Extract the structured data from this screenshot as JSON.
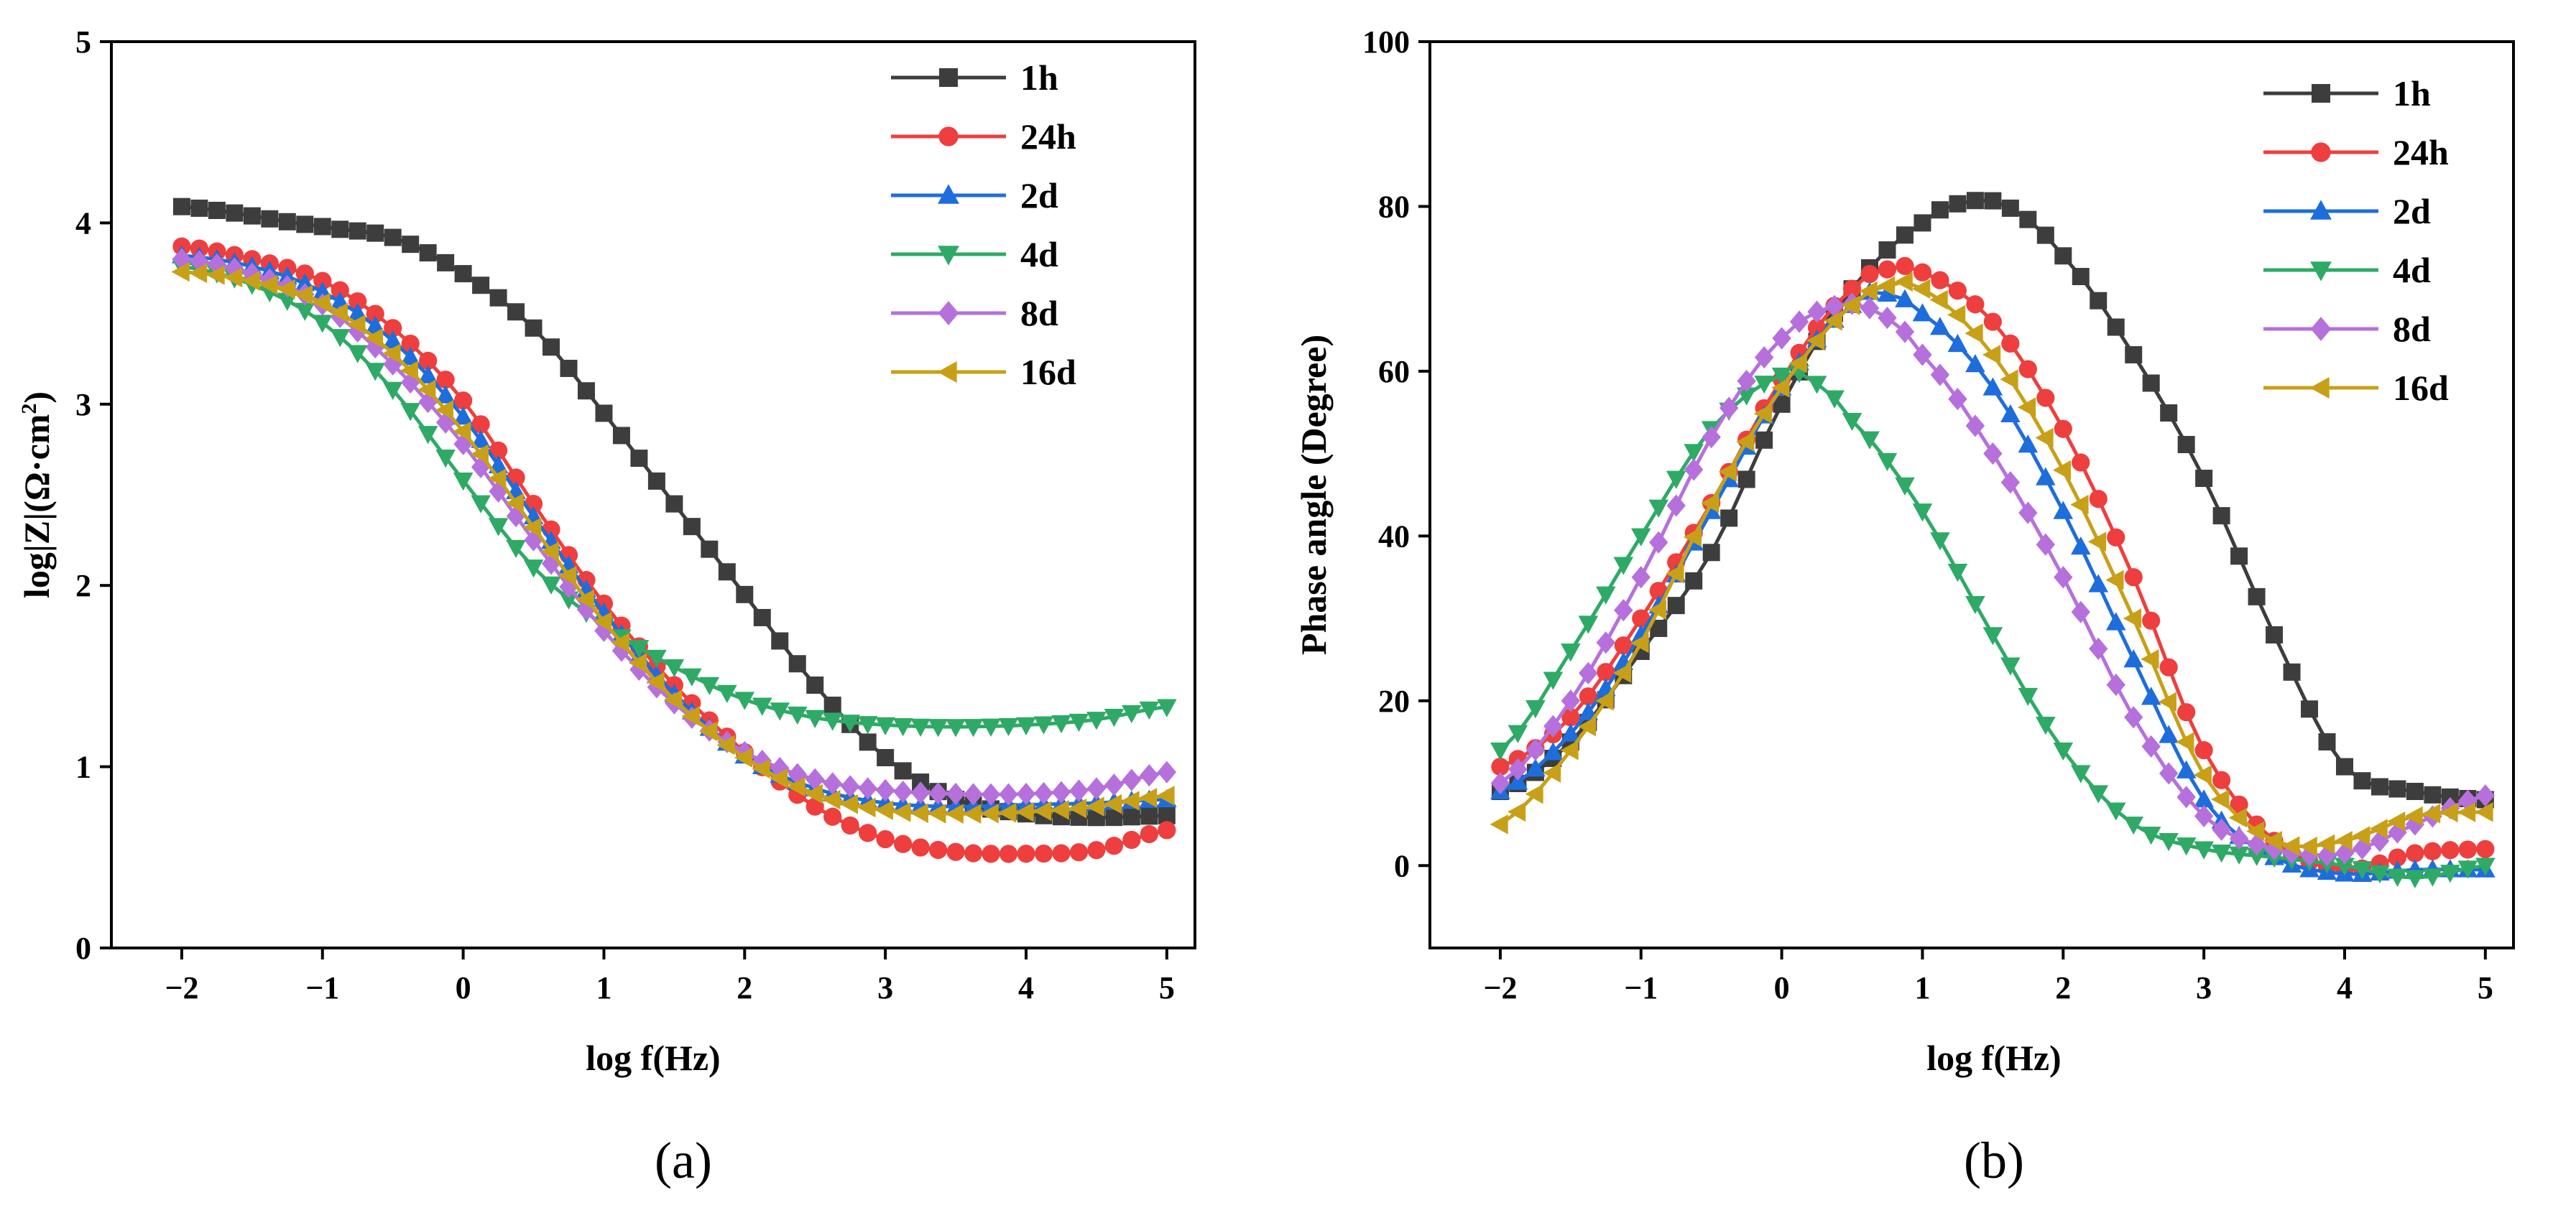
{
  "chart_data": [
    {
      "type": "line",
      "panel_label": "(a)",
      "xlabel": "log f(Hz)",
      "ylabel_prefix": "log|Z|(Ω·cm",
      "ylabel_sup": "2",
      "ylabel_suffix": ")",
      "xlim": [
        -2.5,
        5.2
      ],
      "ylim": [
        0,
        5
      ],
      "xticks": [
        -2,
        -1,
        0,
        1,
        2,
        3,
        4,
        5
      ],
      "yticks": [
        0,
        1,
        2,
        3,
        4,
        5
      ],
      "xtick_labels": [
        "−2",
        "−1",
        "0",
        "1",
        "2",
        "3",
        "4",
        "5"
      ],
      "ytick_labels": [
        "0",
        "1",
        "2",
        "3",
        "4",
        "5"
      ],
      "legend_position": "top-right",
      "series": [
        {
          "name": "1h",
          "color": "#3d3d3d",
          "marker": "square",
          "points": [
            [
              -2,
              4.09
            ],
            [
              -1,
              3.98
            ],
            [
              -0.5,
              3.92
            ],
            [
              0,
              3.72
            ],
            [
              0.5,
              3.42
            ],
            [
              1,
              2.95
            ],
            [
              1.5,
              2.45
            ],
            [
              2,
              1.95
            ],
            [
              2.5,
              1.45
            ],
            [
              3,
              1.05
            ],
            [
              3.5,
              0.82
            ],
            [
              4,
              0.74
            ],
            [
              4.5,
              0.72
            ],
            [
              5,
              0.73
            ]
          ]
        },
        {
          "name": "24h",
          "color": "#ee3e3e",
          "marker": "circle",
          "points": [
            [
              -2,
              3.87
            ],
            [
              -1.5,
              3.8
            ],
            [
              -1,
              3.68
            ],
            [
              -0.5,
              3.42
            ],
            [
              0,
              3.02
            ],
            [
              0.5,
              2.45
            ],
            [
              1,
              1.9
            ],
            [
              1.5,
              1.45
            ],
            [
              2,
              1.08
            ],
            [
              2.5,
              0.78
            ],
            [
              3,
              0.6
            ],
            [
              3.5,
              0.53
            ],
            [
              4,
              0.52
            ],
            [
              4.5,
              0.54
            ],
            [
              5,
              0.65
            ]
          ]
        },
        {
          "name": "2d",
          "color": "#1e6ddc",
          "marker": "triangle-up",
          "points": [
            [
              -2,
              3.82
            ],
            [
              -1.5,
              3.76
            ],
            [
              -1,
              3.62
            ],
            [
              -0.5,
              3.35
            ],
            [
              0,
              2.93
            ],
            [
              0.5,
              2.38
            ],
            [
              1,
              1.85
            ],
            [
              1.5,
              1.4
            ],
            [
              2,
              1.06
            ],
            [
              2.5,
              0.88
            ],
            [
              3,
              0.8
            ],
            [
              3.5,
              0.78
            ],
            [
              4,
              0.79
            ],
            [
              4.5,
              0.8
            ],
            [
              5,
              0.82
            ]
          ]
        },
        {
          "name": "4d",
          "color": "#2eaa66",
          "marker": "triangle-down",
          "points": [
            [
              -2,
              3.76
            ],
            [
              -1.5,
              3.66
            ],
            [
              -1,
              3.45
            ],
            [
              -0.5,
              3.08
            ],
            [
              0,
              2.58
            ],
            [
              0.5,
              2.1
            ],
            [
              1,
              1.78
            ],
            [
              1.5,
              1.55
            ],
            [
              2,
              1.37
            ],
            [
              2.5,
              1.27
            ],
            [
              3,
              1.23
            ],
            [
              3.5,
              1.22
            ],
            [
              4,
              1.23
            ],
            [
              4.5,
              1.26
            ],
            [
              5,
              1.33
            ]
          ]
        },
        {
          "name": "8d",
          "color": "#b670dc",
          "marker": "diamond",
          "points": [
            [
              -2,
              3.8
            ],
            [
              -1.5,
              3.72
            ],
            [
              -1,
              3.55
            ],
            [
              -0.5,
              3.22
            ],
            [
              0,
              2.78
            ],
            [
              0.5,
              2.25
            ],
            [
              1,
              1.75
            ],
            [
              1.5,
              1.35
            ],
            [
              2,
              1.08
            ],
            [
              2.5,
              0.93
            ],
            [
              3,
              0.87
            ],
            [
              3.5,
              0.85
            ],
            [
              4,
              0.85
            ],
            [
              4.5,
              0.88
            ],
            [
              5,
              0.97
            ]
          ]
        },
        {
          "name": "16d",
          "color": "#c8a018",
          "marker": "triangle-left",
          "points": [
            [
              -2,
              3.73
            ],
            [
              -1.5,
              3.68
            ],
            [
              -1,
              3.56
            ],
            [
              -0.5,
              3.28
            ],
            [
              0,
              2.85
            ],
            [
              0.5,
              2.32
            ],
            [
              1,
              1.8
            ],
            [
              1.5,
              1.37
            ],
            [
              2,
              1.05
            ],
            [
              2.5,
              0.85
            ],
            [
              3,
              0.76
            ],
            [
              3.5,
              0.74
            ],
            [
              4,
              0.75
            ],
            [
              4.5,
              0.78
            ],
            [
              5,
              0.84
            ]
          ]
        }
      ]
    },
    {
      "type": "line",
      "panel_label": "(b)",
      "xlabel": "log f(Hz)",
      "ylabel": "Phase angle (Degree)",
      "xlim": [
        -2.5,
        5.2
      ],
      "ylim": [
        -10,
        100
      ],
      "xticks": [
        -2,
        -1,
        0,
        1,
        2,
        3,
        4,
        5
      ],
      "yticks": [
        0,
        20,
        40,
        60,
        80,
        100
      ],
      "xtick_labels": [
        "−2",
        "−1",
        "0",
        "1",
        "2",
        "3",
        "4",
        "5"
      ],
      "ytick_labels": [
        "0",
        "20",
        "40",
        "60",
        "80",
        "100"
      ],
      "legend_position": "top-right",
      "series": [
        {
          "name": "1h",
          "color": "#3d3d3d",
          "marker": "square",
          "points": [
            [
              -2,
              9
            ],
            [
              -1.5,
              15
            ],
            [
              -1,
              26
            ],
            [
              -0.5,
              38
            ],
            [
              0,
              56
            ],
            [
              0.5,
              70
            ],
            [
              1,
              78
            ],
            [
              1.3,
              80.5
            ],
            [
              1.6,
              80
            ],
            [
              2,
              74
            ],
            [
              2.5,
              62
            ],
            [
              3,
              47
            ],
            [
              3.5,
              28
            ],
            [
              4,
              12
            ],
            [
              4.5,
              9
            ],
            [
              5,
              8
            ]
          ]
        },
        {
          "name": "24h",
          "color": "#ee3e3e",
          "marker": "circle",
          "points": [
            [
              -2,
              12
            ],
            [
              -1.5,
              18
            ],
            [
              -1,
              30
            ],
            [
              -0.5,
              44
            ],
            [
              0,
              59
            ],
            [
              0.5,
              70
            ],
            [
              0.8,
              72.5
            ],
            [
              1,
              72
            ],
            [
              1.5,
              66
            ],
            [
              2,
              53
            ],
            [
              2.5,
              35
            ],
            [
              3,
              14
            ],
            [
              3.5,
              3
            ],
            [
              4,
              -0.5
            ],
            [
              4.5,
              1.5
            ],
            [
              5,
              2
            ]
          ]
        },
        {
          "name": "2d",
          "color": "#1e6ddc",
          "marker": "triangle-up",
          "points": [
            [
              -2,
              9
            ],
            [
              -1.5,
              16
            ],
            [
              -1,
              28
            ],
            [
              -0.5,
              43
            ],
            [
              0,
              58
            ],
            [
              0.5,
              68
            ],
            [
              0.7,
              69.5
            ],
            [
              1,
              67
            ],
            [
              1.5,
              58
            ],
            [
              2,
              43
            ],
            [
              2.5,
              25
            ],
            [
              3,
              8
            ],
            [
              3.5,
              1
            ],
            [
              4,
              -1
            ],
            [
              4.5,
              -0.5
            ],
            [
              5,
              -0.5
            ]
          ]
        },
        {
          "name": "4d",
          "color": "#2eaa66",
          "marker": "triangle-down",
          "points": [
            [
              -2,
              14
            ],
            [
              -1.5,
              26
            ],
            [
              -1,
              40
            ],
            [
              -0.5,
              53
            ],
            [
              0,
              59.5
            ],
            [
              0.2,
              59
            ],
            [
              0.5,
              54
            ],
            [
              1,
              43
            ],
            [
              1.5,
              28
            ],
            [
              2,
              14
            ],
            [
              2.5,
              5
            ],
            [
              3,
              2
            ],
            [
              3.5,
              1
            ],
            [
              4,
              0
            ],
            [
              4.5,
              -1.5
            ],
            [
              5,
              0
            ]
          ]
        },
        {
          "name": "8d",
          "color": "#b670dc",
          "marker": "diamond",
          "points": [
            [
              -2,
              10
            ],
            [
              -1.5,
              20
            ],
            [
              -1,
              35
            ],
            [
              -0.5,
              52
            ],
            [
              0,
              64
            ],
            [
              0.4,
              68
            ],
            [
              0.7,
              67
            ],
            [
              1,
              62
            ],
            [
              1.5,
              50
            ],
            [
              2,
              35
            ],
            [
              2.5,
              18
            ],
            [
              3,
              6
            ],
            [
              3.5,
              2
            ],
            [
              4,
              1.5
            ],
            [
              4.5,
              5
            ],
            [
              5,
              8.5
            ]
          ]
        },
        {
          "name": "16d",
          "color": "#c8a018",
          "marker": "triangle-left",
          "points": [
            [
              -2,
              5
            ],
            [
              -1.5,
              14
            ],
            [
              -1,
              27
            ],
            [
              -0.5,
              44
            ],
            [
              0,
              58
            ],
            [
              0.5,
              68
            ],
            [
              0.8,
              70.5
            ],
            [
              1,
              70
            ],
            [
              1.5,
              62
            ],
            [
              2,
              48
            ],
            [
              2.5,
              30
            ],
            [
              3,
              11
            ],
            [
              3.5,
              3
            ],
            [
              4,
              3
            ],
            [
              4.5,
              6
            ],
            [
              5,
              6.5
            ]
          ]
        }
      ]
    }
  ]
}
